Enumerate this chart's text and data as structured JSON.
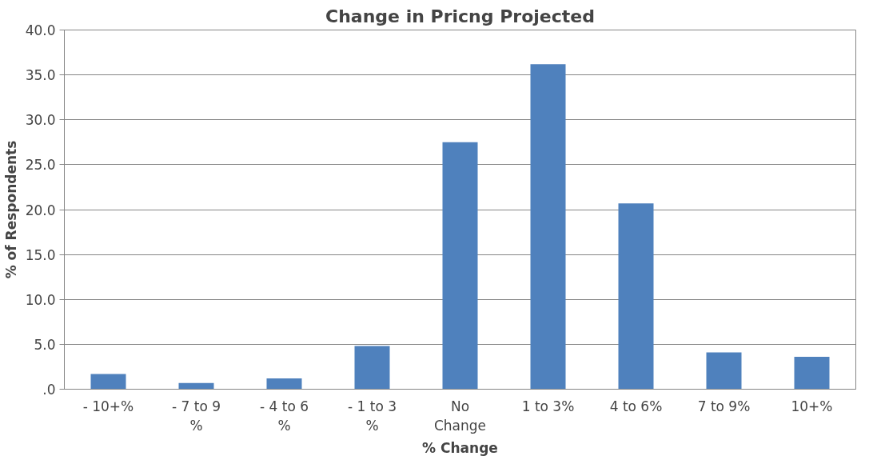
{
  "chart_data": {
    "type": "bar",
    "title": "Change in Pricng Projected",
    "xlabel": "% Change",
    "ylabel": "% of Respondents",
    "categories": [
      "- 10+%",
      "- 7 to 9 %",
      "- 4 to 6 %",
      "- 1 to 3 %",
      "No Change",
      "1 to 3%",
      "4 to 6%",
      "7 to 9%",
      "10+%"
    ],
    "values": [
      1.7,
      0.7,
      1.2,
      4.8,
      27.5,
      36.2,
      20.7,
      4.1,
      3.6
    ],
    "color": "#4f81bd",
    "ylim": [
      0,
      40
    ],
    "yticks": [
      {
        "value": 0,
        "label": ".0"
      },
      {
        "value": 5,
        "label": "5.0"
      },
      {
        "value": 10,
        "label": "10.0"
      },
      {
        "value": 15,
        "label": "15.0"
      },
      {
        "value": 20,
        "label": "20.0"
      },
      {
        "value": 25,
        "label": "25.0"
      },
      {
        "value": 30,
        "label": "30.0"
      },
      {
        "value": 35,
        "label": "35.0"
      },
      {
        "value": 40,
        "label": "40.0"
      }
    ],
    "grid": "y"
  }
}
